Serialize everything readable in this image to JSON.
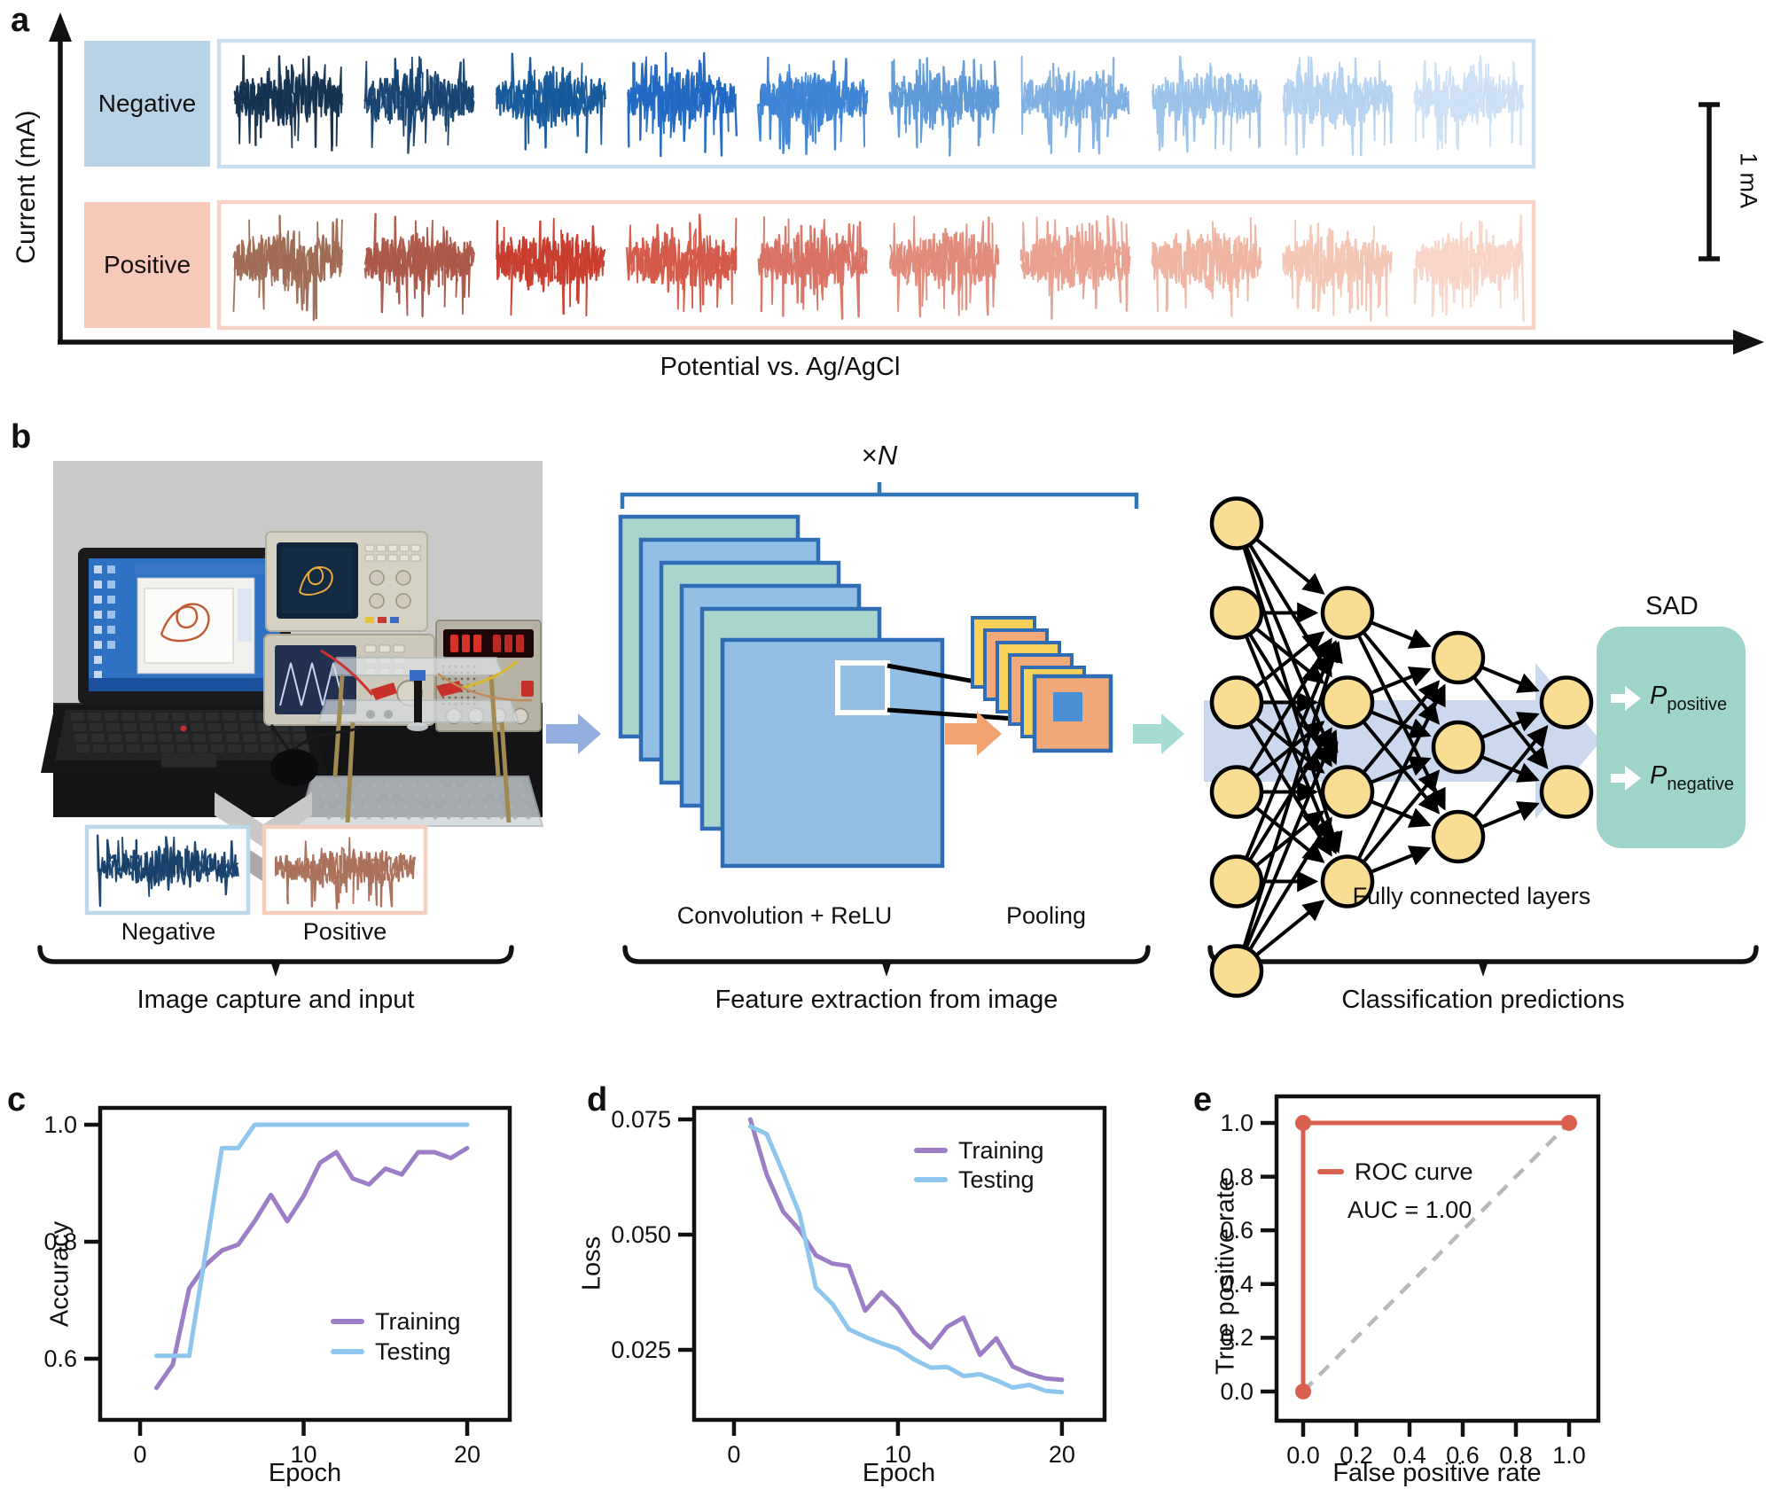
{
  "panels": {
    "a": "a",
    "b": "b",
    "c": "c",
    "d": "d",
    "e": "e"
  },
  "panel_a": {
    "y_axis_label": "Current (mA)",
    "x_axis_label": "Potential vs. Ag/AgCl",
    "scale_bar_label": "1 mA",
    "rows": [
      {
        "label": "Negative",
        "label_bg": "#b9d3e6",
        "box_border": "#c9dff0",
        "trace_colors": [
          "#153250",
          "#16436f",
          "#15599b",
          "#2068c2",
          "#3d83d6",
          "#5e99d8",
          "#7fb0e2",
          "#9bc2e9",
          "#b5d2ef",
          "#cce0f5"
        ]
      },
      {
        "label": "Positive",
        "label_bg": "#f7c9b9",
        "box_border": "#f8d2c4",
        "trace_colors": [
          "#a06b55",
          "#ab5747",
          "#c83c2d",
          "#d45948",
          "#da7264",
          "#e18a7a",
          "#e9a18f",
          "#efb4a2",
          "#f4c5b4",
          "#f8d5c7"
        ]
      }
    ]
  },
  "panel_b": {
    "multiplier_label": {
      "times": "×",
      "n": "N"
    },
    "crops": [
      {
        "label": "Negative",
        "border": "#bcd8ea",
        "trace_color": "#17406a"
      },
      {
        "label": "Positive",
        "border": "#f6cdbd",
        "trace_color": "#a9705a"
      }
    ],
    "captions": [
      "Image capture and input",
      "Feature extraction from image",
      "Classification predictions"
    ],
    "conv_label": "Convolution + ReLU",
    "pool_label": "Pooling",
    "fc_label": "Fully connected layers",
    "sad_title": "SAD",
    "outputs": [
      {
        "symbol": "P",
        "subscript": "positive"
      },
      {
        "symbol": "P",
        "subscript": "negative"
      }
    ],
    "network_layers": [
      6,
      4,
      3,
      2
    ],
    "diagram_colors": {
      "conv_teal": "#a9d5cd",
      "conv_blue": "#94bfe4",
      "stack_border": "#2e6db5",
      "pool_yellow": "#f9d25c",
      "pool_orange": "#f2a878",
      "pool_inner_blue": "#4a8fd3",
      "input_arrow": "#93aede",
      "pool_arrow": "#f2a470",
      "out_arrow": "#a5dcd4",
      "fc_band_arrow": "#ccd8ee",
      "node_fill": "#f8dd92",
      "sad_bg": "#9fd4ca",
      "bracket_blue": "#2e75b6"
    }
  },
  "chart_data": [
    {
      "panel": "c",
      "type": "line",
      "title": "",
      "xlabel": "Epoch",
      "ylabel": "Accuracy",
      "x": [
        1,
        2,
        3,
        4,
        5,
        6,
        7,
        8,
        9,
        10,
        11,
        12,
        13,
        14,
        15,
        16,
        17,
        18,
        19,
        20
      ],
      "series": [
        {
          "name": "Training",
          "color": "#9d7ec6",
          "values": [
            0.55,
            0.59,
            0.72,
            0.76,
            0.785,
            0.795,
            0.835,
            0.88,
            0.835,
            0.878,
            0.935,
            0.953,
            0.908,
            0.898,
            0.925,
            0.915,
            0.953,
            0.953,
            0.943,
            0.96
          ]
        },
        {
          "name": "Testing",
          "color": "#8ec6ed",
          "values": [
            0.605,
            0.605,
            0.605,
            0.78,
            0.96,
            0.96,
            1.0,
            1.0,
            1.0,
            1.0,
            1.0,
            1.0,
            1.0,
            1.0,
            1.0,
            1.0,
            1.0,
            1.0,
            1.0,
            1.0
          ]
        }
      ],
      "xticks": {
        "values": [
          0,
          10,
          20
        ],
        "labels": [
          "0",
          "10",
          "20"
        ]
      },
      "yticks": {
        "values": [
          0.6,
          0.8,
          1.0
        ],
        "labels": [
          "0.6",
          "0.8",
          "1.0"
        ]
      },
      "xlim": [
        -2.44,
        22.6
      ],
      "ylim": [
        0.4955,
        1.0288
      ],
      "grid": false,
      "legend_position": "inside lower-right"
    },
    {
      "panel": "d",
      "type": "line",
      "title": "",
      "xlabel": "Epoch",
      "ylabel": "Loss",
      "x": [
        1,
        2,
        3,
        4,
        5,
        6,
        7,
        8,
        9,
        10,
        11,
        12,
        13,
        14,
        15,
        16,
        17,
        18,
        19,
        20
      ],
      "series": [
        {
          "name": "Training",
          "color": "#9d7ec6",
          "values": [
            0.075,
            0.063,
            0.055,
            0.051,
            0.0455,
            0.0437,
            0.0432,
            0.0335,
            0.0375,
            0.034,
            0.0287,
            0.0255,
            0.03,
            0.032,
            0.0239,
            0.0275,
            0.0214,
            0.0198,
            0.0188,
            0.0185
          ]
        },
        {
          "name": "Testing",
          "color": "#8ec6ed",
          "values": [
            0.0735,
            0.0718,
            0.0634,
            0.0545,
            0.0385,
            0.035,
            0.0295,
            0.0278,
            0.0264,
            0.0252,
            0.0229,
            0.0211,
            0.0213,
            0.0193,
            0.0197,
            0.0184,
            0.0168,
            0.0174,
            0.0161,
            0.0158
          ]
        }
      ],
      "xticks": {
        "values": [
          0,
          10,
          20
        ],
        "labels": [
          "0",
          "10",
          "20"
        ]
      },
      "yticks": {
        "values": [
          0.025,
          0.05,
          0.075
        ],
        "labels": [
          "0.025",
          "0.050",
          "0.075"
        ]
      },
      "xlim": [
        -2.43,
        22.6
      ],
      "ylim": [
        0.0098,
        0.0775
      ],
      "grid": false,
      "legend_position": "inside upper-right"
    },
    {
      "panel": "e",
      "type": "line",
      "title": "",
      "xlabel": "False positive rate",
      "ylabel": "True positive rate",
      "series": [
        {
          "name": "ROC curve",
          "color": "#d9604f",
          "x": [
            0,
            0,
            1
          ],
          "y": [
            0,
            1,
            1
          ],
          "markers": true
        }
      ],
      "diagonal": {
        "color": "#b8b8b8",
        "dashed": true,
        "x": [
          0,
          1
        ],
        "y": [
          0,
          1
        ]
      },
      "annotation": "AUC = 1.00",
      "xticks": {
        "values": [
          0,
          0.2,
          0.4,
          0.6,
          0.8,
          1.0
        ],
        "labels": [
          "0.0",
          "0.2",
          "0.4",
          "0.6",
          "0.8",
          "1.0"
        ]
      },
      "yticks": {
        "values": [
          0,
          0.2,
          0.4,
          0.6,
          0.8,
          1.0
        ],
        "labels": [
          "0.0",
          "0.2",
          "0.4",
          "0.6",
          "0.8",
          "1.0"
        ]
      },
      "xlim": [
        -0.1,
        1.11
      ],
      "ylim": [
        -0.109,
        1.099
      ],
      "grid": false,
      "legend_position": "inside upper-left"
    }
  ]
}
